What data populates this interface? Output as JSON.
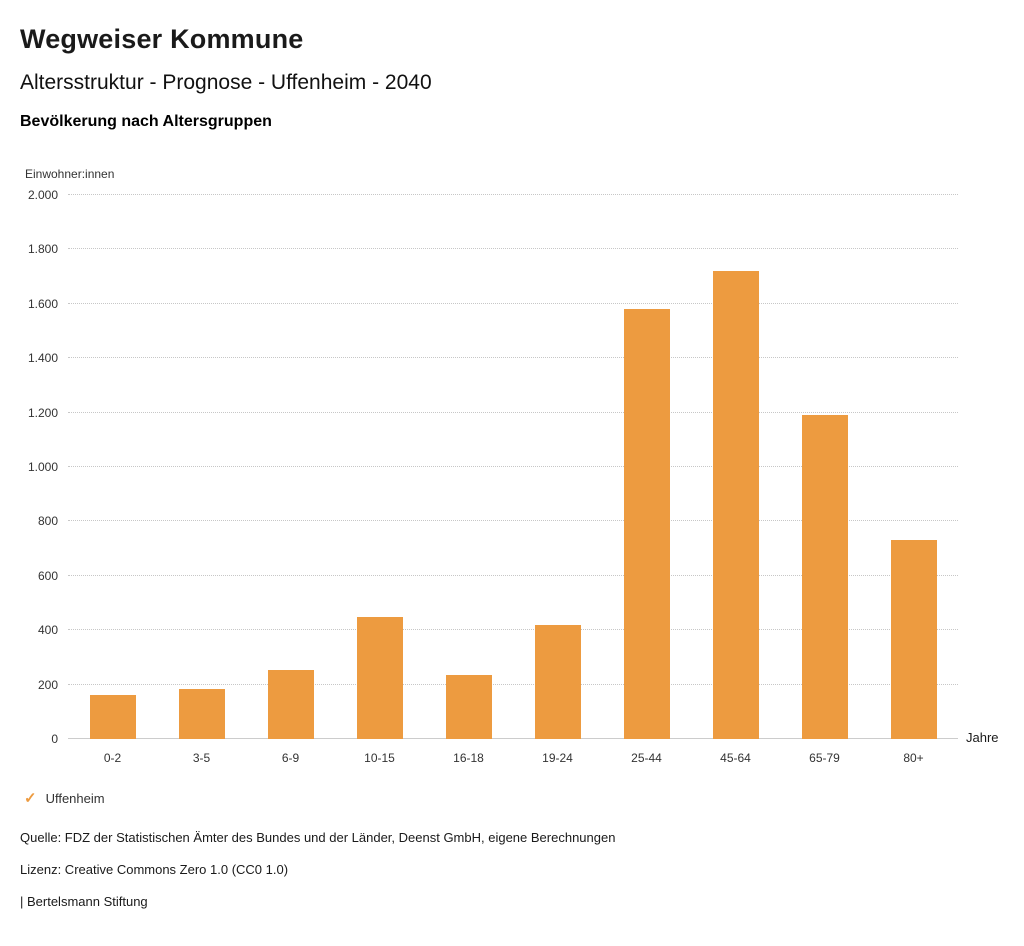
{
  "header": {
    "title": "Wegweiser Kommune",
    "subtitle": "Altersstruktur - Prognose - Uffenheim - 2040",
    "chart_title": "Bevölkerung nach Altersgruppen"
  },
  "chart_data": {
    "type": "bar",
    "categories": [
      "0-2",
      "3-5",
      "6-9",
      "10-15",
      "16-18",
      "19-24",
      "25-44",
      "45-64",
      "65-79",
      "80+"
    ],
    "values": [
      160,
      185,
      255,
      450,
      235,
      420,
      1580,
      1720,
      1190,
      730
    ],
    "series_name": "Uffenheim",
    "title": "Bevölkerung nach Altersgruppen",
    "ylabel": "Einwohner:innen",
    "xlabel": "Jahre",
    "ylim": [
      0,
      2000
    ],
    "ytick_step": 200,
    "bar_color": "#ED9B40",
    "grid": "horizontal-dotted",
    "legend_position": "bottom-left"
  },
  "legend": {
    "check_icon": "✓",
    "items": [
      {
        "label": "Uffenheim",
        "checked": true,
        "color": "#ED9B40"
      }
    ]
  },
  "footer": {
    "source": "Quelle: FDZ der Statistischen Ämter des Bundes und der Länder, Deenst GmbH, eigene Berechnungen",
    "license": "Lizenz: Creative Commons Zero 1.0 (CC0 1.0)",
    "attribution": "| Bertelsmann Stiftung"
  }
}
